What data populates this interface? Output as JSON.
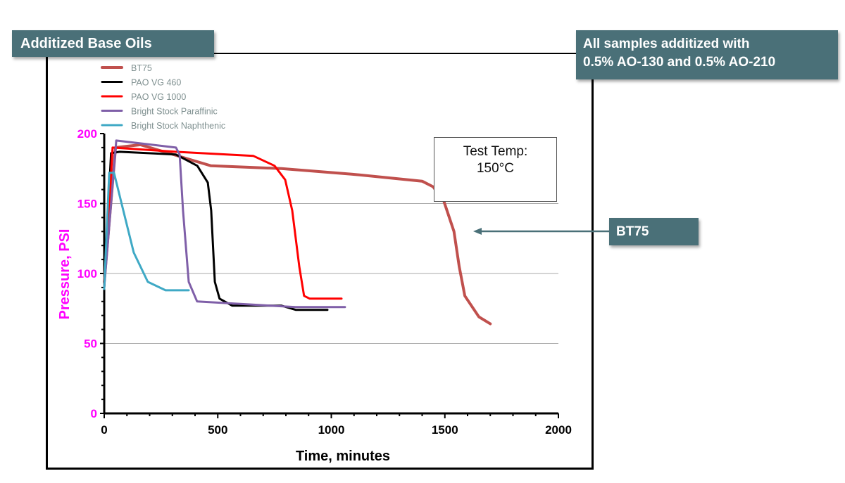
{
  "title": "Additized Base Oils",
  "note": [
    "All samples additized with",
    "0.5% AO-130 and 0.5% AO-210"
  ],
  "annotation_box": [
    "Test Temp:",
    "150°C"
  ],
  "callout": {
    "label": "BT75",
    "points_to": "BT75"
  },
  "chart_data": {
    "type": "line",
    "xlabel": "Time, minutes",
    "ylabel": "Pressure, PSI",
    "xlim": [
      0,
      2000
    ],
    "ylim": [
      0,
      200
    ],
    "xticks": [
      0,
      500,
      1000,
      1500,
      2000
    ],
    "yticks": [
      0,
      50,
      100,
      150,
      200
    ],
    "grid": "horizontal",
    "legend": "top-left",
    "axis_label_color": "#ff00ff",
    "series": [
      {
        "name": "BT75",
        "color": "#c0504d",
        "x": [
          0,
          50,
          160,
          470,
          780,
          1090,
          1400,
          1448,
          1495,
          1540,
          1563,
          1588,
          1650,
          1700
        ],
        "y": [
          94,
          190,
          192,
          177,
          175,
          171,
          166,
          162,
          152,
          130,
          105,
          84,
          69,
          64
        ]
      },
      {
        "name": "PAO VG 460",
        "color": "#000000",
        "x": [
          0,
          30,
          68,
          316,
          410,
          456,
          471,
          487,
          508,
          564,
          781,
          843,
          983
        ],
        "y": [
          90,
          186,
          187,
          185,
          177,
          165,
          145,
          94,
          82,
          77,
          77,
          74,
          74
        ]
      },
      {
        "name": "PAO VG 1000",
        "color": "#ff0000",
        "x": [
          0,
          37,
          316,
          657,
          750,
          797,
          828,
          859,
          880,
          905,
          1045
        ],
        "y": [
          90,
          190,
          187,
          184,
          177,
          167,
          145,
          105,
          84,
          82,
          82
        ]
      },
      {
        "name": "Bright Stock Paraffinic",
        "color": "#7f5fa8",
        "x": [
          0,
          53,
          316,
          332,
          347,
          372,
          409,
          626,
          843,
          1060
        ],
        "y": [
          90,
          195,
          190,
          185,
          145,
          94,
          80,
          78,
          76,
          76
        ]
      },
      {
        "name": "Bright Stock Naphthenic",
        "color": "#3fa9c5",
        "x": [
          0,
          22,
          43,
          84,
          130,
          192,
          270,
          372
        ],
        "y": [
          89,
          172,
          172,
          145,
          115,
          94,
          88,
          88
        ]
      }
    ]
  }
}
